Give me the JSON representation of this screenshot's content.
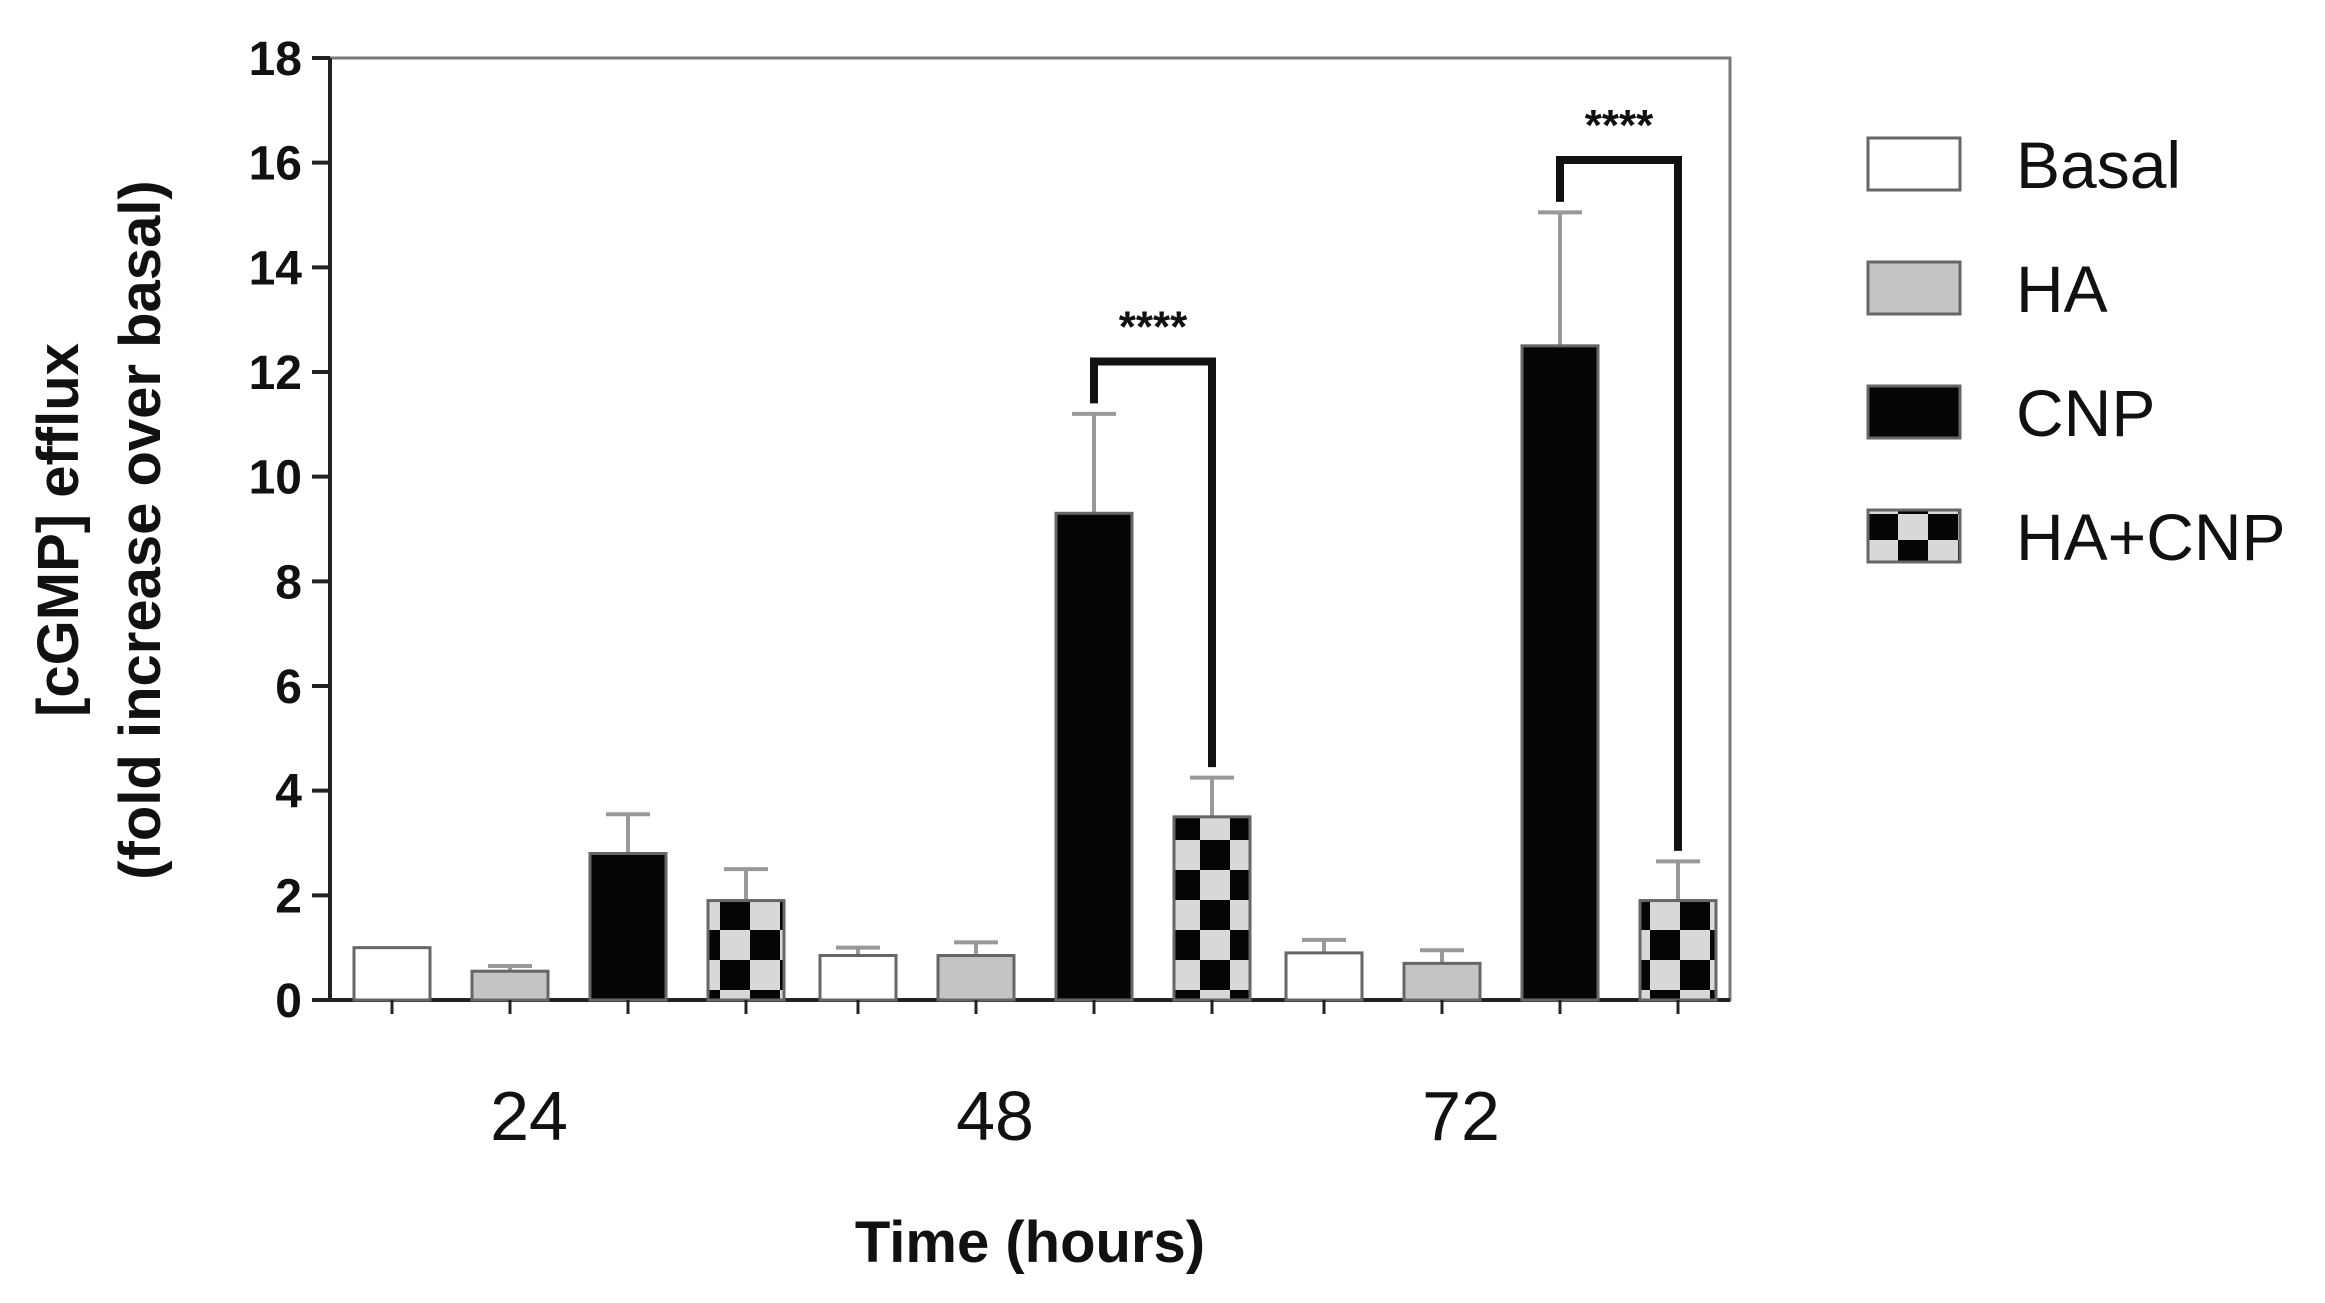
{
  "chart_data": {
    "type": "bar",
    "categories": [
      "24",
      "48",
      "72"
    ],
    "series": [
      {
        "name": "Basal",
        "values": [
          1.0,
          0.85,
          0.9
        ],
        "errors": [
          0.0,
          0.15,
          0.25
        ],
        "fill": "white"
      },
      {
        "name": "HA",
        "values": [
          0.55,
          0.85,
          0.7
        ],
        "errors": [
          0.1,
          0.25,
          0.25
        ],
        "fill": "gray"
      },
      {
        "name": "CNP",
        "values": [
          2.8,
          9.3,
          12.5
        ],
        "errors": [
          0.75,
          1.9,
          2.55
        ],
        "fill": "black"
      },
      {
        "name": "HA+CNP",
        "values": [
          1.9,
          3.5,
          1.9
        ],
        "errors": [
          0.6,
          0.75,
          0.75
        ],
        "fill": "checker"
      }
    ],
    "xlabel": "Time (hours)",
    "ylabel_line1": "[cGMP] efflux",
    "ylabel_line2": "(fold increase over basal)",
    "ylim": [
      0,
      18
    ],
    "yticks": [
      0,
      2,
      4,
      6,
      8,
      10,
      12,
      14,
      16,
      18
    ],
    "legend_position": "right",
    "significance": [
      {
        "category": "48",
        "from": "CNP",
        "to": "HA+CNP",
        "label": "****"
      },
      {
        "category": "72",
        "from": "CNP",
        "to": "HA+CNP",
        "label": "****"
      }
    ],
    "colors": {
      "white": "#ffffff",
      "gray": "#c4c4c4",
      "black": "#050505",
      "checker_light": "#d8d8d8",
      "checker_dark": "#050505"
    }
  }
}
